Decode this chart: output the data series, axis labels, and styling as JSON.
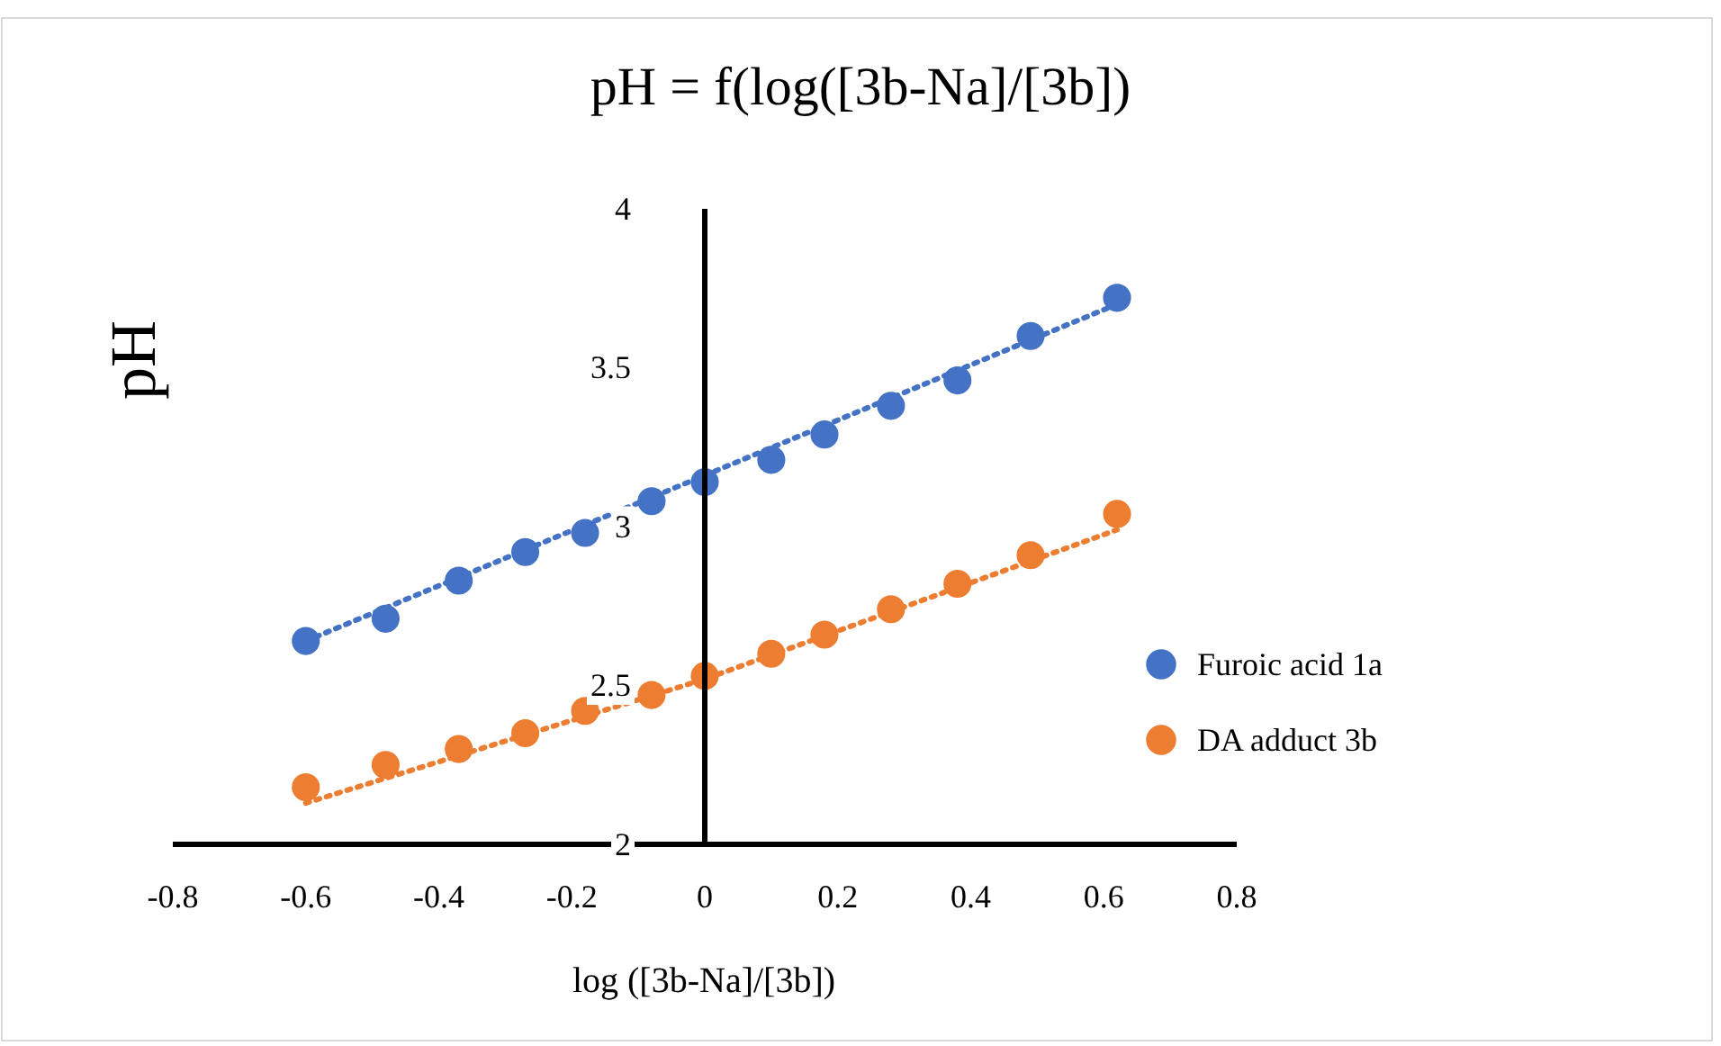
{
  "chart_data": {
    "type": "scatter",
    "title": "pH = f(log([3b-Na]/[3b])",
    "xlabel": "log ([3b-Na]/[3b])",
    "ylabel": "pH",
    "xlim": [
      -0.8,
      0.8
    ],
    "xticks": [
      -0.8,
      -0.6,
      -0.4,
      -0.2,
      0,
      0.2,
      0.4,
      0.6,
      0.8
    ],
    "ylim": [
      2,
      4
    ],
    "yticks": [
      2,
      2.5,
      3,
      3.5,
      4
    ],
    "grid": false,
    "legend": "right",
    "series": [
      {
        "name": "Furoic acid 1a",
        "color": "#4472c4",
        "marker": "circle",
        "x": [
          -0.6,
          -0.48,
          -0.37,
          -0.27,
          -0.18,
          -0.08,
          0.0,
          0.1,
          0.18,
          0.28,
          0.38,
          0.49,
          0.62
        ],
        "values": [
          2.64,
          2.71,
          2.83,
          2.92,
          2.98,
          3.08,
          3.14,
          3.21,
          3.29,
          3.38,
          3.46,
          3.6,
          3.72
        ]
      },
      {
        "name": "DA adduct 3b",
        "color": "#ed7d31",
        "marker": "circle",
        "x": [
          -0.6,
          -0.48,
          -0.37,
          -0.27,
          -0.18,
          -0.08,
          0.0,
          0.1,
          0.18,
          0.28,
          0.38,
          0.49,
          0.62
        ],
        "values": [
          2.18,
          2.25,
          2.3,
          2.35,
          2.42,
          2.47,
          2.53,
          2.6,
          2.66,
          2.74,
          2.82,
          2.91,
          3.04
        ]
      },
      {
        "type": "line",
        "color": "#4472c4",
        "line_style": "dotted",
        "x": [
          -0.6,
          0.62
        ],
        "values": [
          2.64,
          3.7
        ]
      },
      {
        "type": "line",
        "color": "#ed7d31",
        "line_style": "dotted",
        "x": [
          -0.6,
          0,
          0.62
        ],
        "values": [
          2.13,
          2.52,
          2.99
        ]
      }
    ]
  }
}
